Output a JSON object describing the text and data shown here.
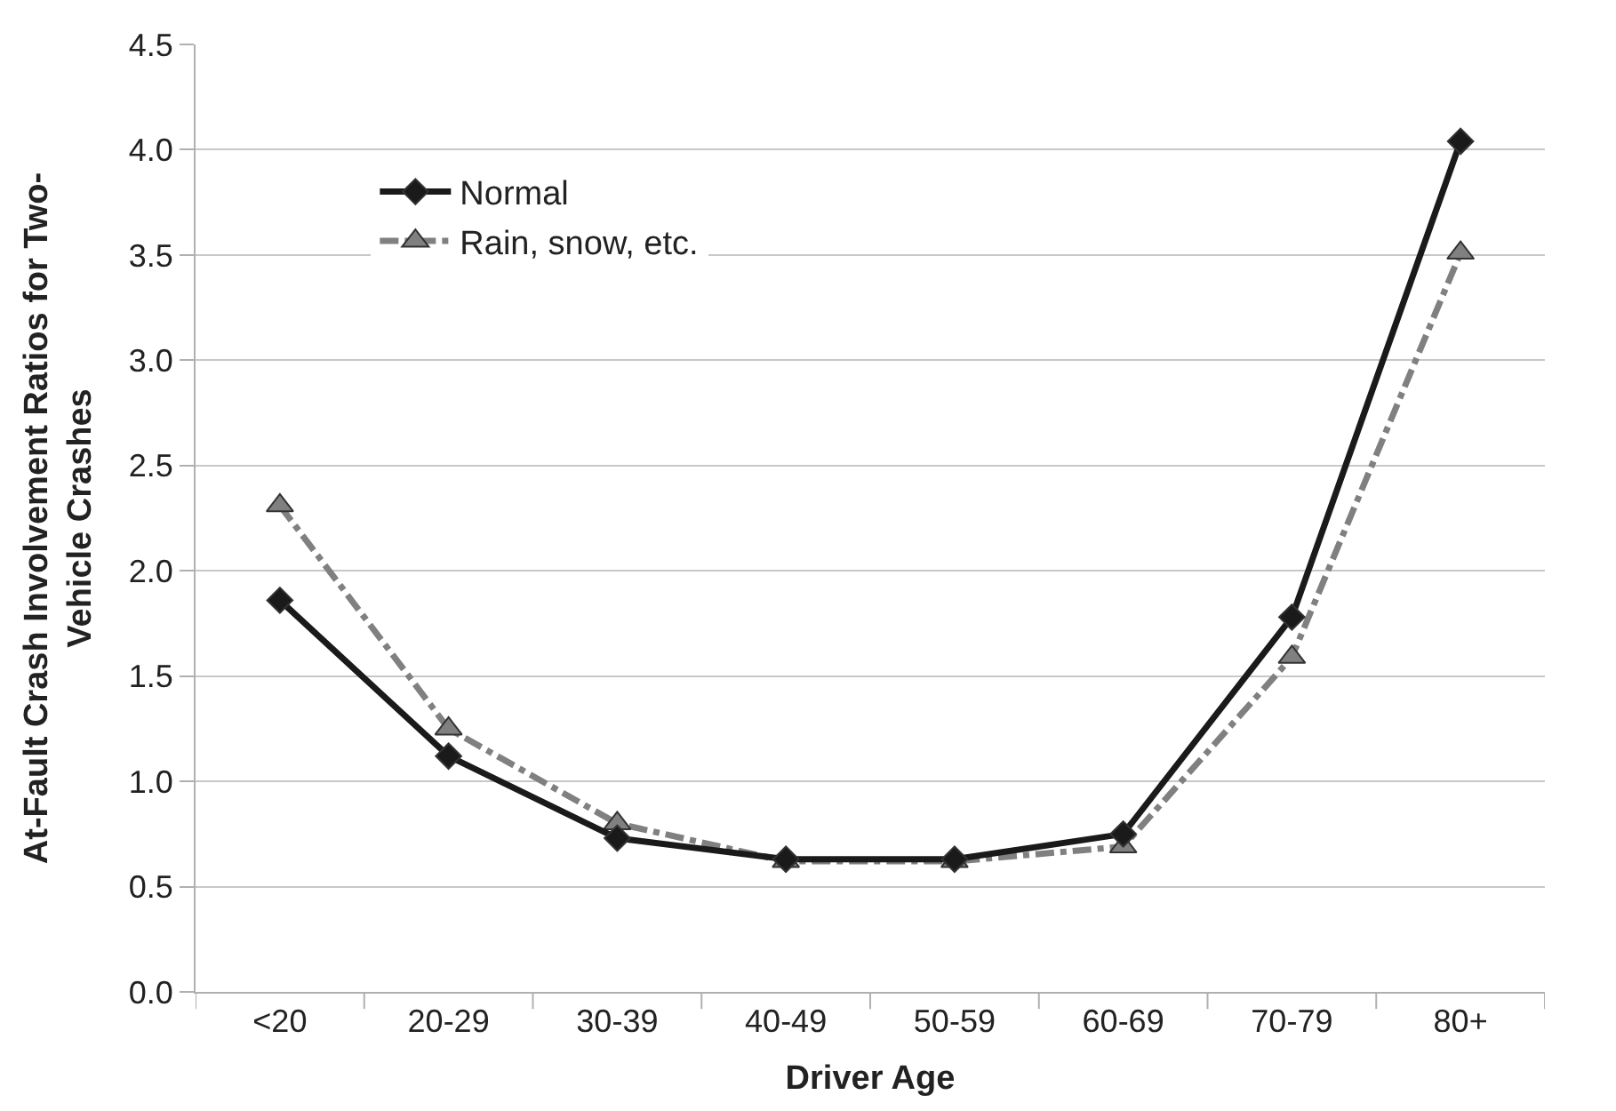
{
  "chart_data": {
    "type": "line",
    "xlabel": "Driver Age",
    "ylabel": "At-Fault Crash Involvement Ratios for Two-Vehicle Crashes",
    "categories": [
      "<20",
      "20-29",
      "30-39",
      "40-49",
      "50-59",
      "60-69",
      "70-79",
      "80+"
    ],
    "series": [
      {
        "name": "Normal",
        "color": "#1a1a1a",
        "marker": "diamond",
        "line_style": "solid",
        "values": [
          1.86,
          1.12,
          0.73,
          0.63,
          0.63,
          0.75,
          1.78,
          4.04
        ]
      },
      {
        "name": "Rain, snow, etc.",
        "color": "#808080",
        "marker": "triangle",
        "line_style": "dashdot",
        "values": [
          2.31,
          1.25,
          0.8,
          0.62,
          0.62,
          0.69,
          1.59,
          3.51
        ]
      }
    ],
    "ylim": [
      0,
      4.5
    ],
    "yticks": [
      {
        "value": 0,
        "label": "0.0"
      },
      0.5,
      {
        "value": 1,
        "label": "1.0"
      },
      1.5,
      {
        "value": 2,
        "label": "2.0"
      },
      2.5,
      {
        "value": 3,
        "label": "3.0"
      },
      3.5,
      {
        "value": 4,
        "label": "4.0"
      },
      4.5
    ],
    "grid": "y",
    "legend": "top left"
  }
}
